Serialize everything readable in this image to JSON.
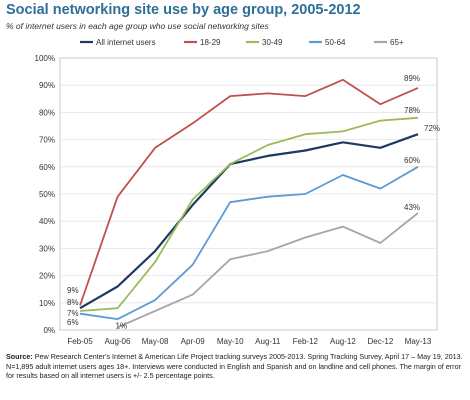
{
  "chart_data": {
    "type": "line",
    "title": "Social networking site use by age group, 2005-2012",
    "subtitle": "% of internet users in each age group who use social networking sites",
    "categories": [
      "Feb-05",
      "Aug-06",
      "May-08",
      "Apr-09",
      "May-10",
      "Aug-11",
      "Feb-12",
      "Aug-12",
      "Dec-12",
      "May-13"
    ],
    "ylim": [
      0,
      100
    ],
    "yticks": [
      "0%",
      "10%",
      "20%",
      "30%",
      "40%",
      "50%",
      "60%",
      "70%",
      "80%",
      "90%",
      "100%"
    ],
    "grid": true,
    "legend_position": "top",
    "series": [
      {
        "name": "All internet users",
        "color": "#1f3a5f",
        "values": [
          8,
          16,
          29,
          46,
          61,
          64,
          66,
          69,
          67,
          72
        ]
      },
      {
        "name": "18-29",
        "color": "#c0504d",
        "values": [
          9,
          49,
          67,
          76,
          86,
          87,
          86,
          92,
          83,
          89
        ]
      },
      {
        "name": "30-49",
        "color": "#9bbb59",
        "values": [
          7,
          8,
          25,
          48,
          61,
          68,
          72,
          73,
          77,
          78
        ]
      },
      {
        "name": "50-64",
        "color": "#5b9bd5",
        "values": [
          6,
          4,
          11,
          24,
          47,
          49,
          50,
          57,
          52,
          60
        ]
      },
      {
        "name": "65+",
        "color": "#a6a6a6",
        "values": [
          null,
          1,
          7,
          13,
          26,
          29,
          34,
          38,
          32,
          43
        ]
      }
    ],
    "annotations": {
      "start": [
        {
          "text": "9%",
          "value": 9
        },
        {
          "text": "8%",
          "value": 8
        },
        {
          "text": "7%",
          "value": 7
        },
        {
          "text": "6%",
          "value": 6
        }
      ],
      "extra": [
        {
          "text": "1%",
          "category": "Aug-06",
          "value": 1
        }
      ],
      "end": [
        {
          "text": "89%",
          "value": 89
        },
        {
          "text": "78%",
          "value": 78
        },
        {
          "text": "72%",
          "value": 72
        },
        {
          "text": "60%",
          "value": 60
        },
        {
          "text": "43%",
          "value": 43
        }
      ]
    }
  },
  "source": {
    "label": "Source:",
    "text": "Pew Research Center's Internet & American Life Project tracking surveys 2005-2013. Spring Tracking Survey, April 17 – May 19, 2013. N=1,895 adult internet users ages 18+. Interviews were conducted in English and Spanish and on landline and cell phones. The margin of error for results based on all internet users is +/- 2.5 percentage points."
  }
}
